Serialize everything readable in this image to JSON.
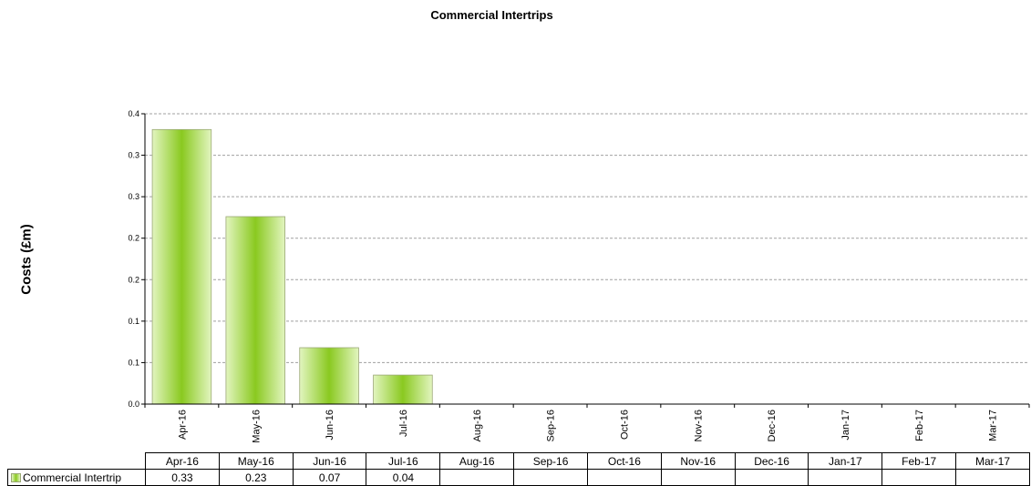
{
  "chart_data": {
    "type": "bar",
    "title": "Commercial Intertrips",
    "ylabel": "Costs (£m)",
    "xlabel": "",
    "categories": [
      "Apr-16",
      "May-16",
      "Jun-16",
      "Jul-16",
      "Aug-16",
      "Sep-16",
      "Oct-16",
      "Nov-16",
      "Dec-16",
      "Jan-17",
      "Feb-17",
      "Mar-17"
    ],
    "series": [
      {
        "name": "Commercial Intertrip",
        "values": [
          0.33,
          0.23,
          0.07,
          0.04,
          null,
          null,
          null,
          null,
          null,
          null,
          null,
          null
        ],
        "display": [
          "0.33",
          "0.23",
          "0.07",
          "0.04",
          "",
          "",
          "",
          "",
          "",
          "",
          "",
          ""
        ]
      }
    ],
    "bar_values": [
      0.331,
      0.226,
      0.068,
      0.035
    ],
    "ylim": [
      0,
      0.35
    ],
    "ytick_values": [
      0,
      0.05,
      0.1,
      0.15,
      0.2,
      0.25,
      0.3,
      0.35
    ],
    "ytick_labels": [
      "0.0",
      "0.1",
      "0.1",
      "0.2",
      "0.2",
      "0.3",
      "0.3",
      "0.4"
    ],
    "grid": true,
    "legend": "data-table",
    "colors": {
      "bar_center": "#8ac920",
      "bar_edge": "#e2f5bf",
      "grid": "#a0a0a0"
    }
  }
}
